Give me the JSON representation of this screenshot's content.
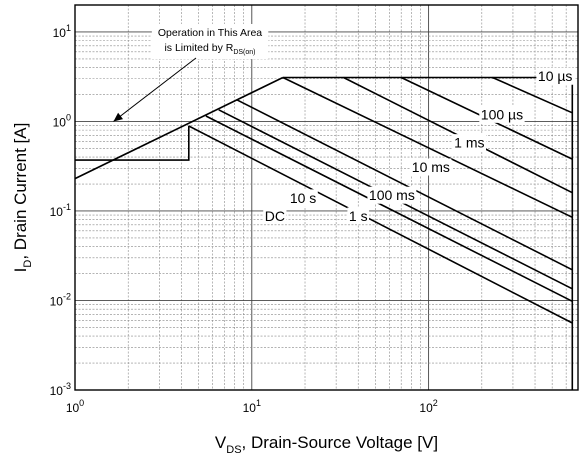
{
  "chart_data": {
    "type": "line",
    "x_scale": "log",
    "y_scale": "log",
    "xlim": [
      1,
      700
    ],
    "ylim": [
      0.001,
      20
    ],
    "grid": true,
    "xlabel": {
      "main": "V",
      "sub": "DS",
      "rest": ", Drain-Source Voltage [V]"
    },
    "ylabel": {
      "main": "I",
      "sub": "D",
      "rest": ", Drain Current [A]"
    },
    "x_ticks": [
      {
        "value": 1,
        "base": "10",
        "exp": "0"
      },
      {
        "value": 10,
        "base": "10",
        "exp": "1"
      },
      {
        "value": 100,
        "base": "10",
        "exp": "2"
      }
    ],
    "y_ticks": [
      {
        "value": 0.001,
        "base": "10",
        "exp": "-3"
      },
      {
        "value": 0.01,
        "base": "10",
        "exp": "-2"
      },
      {
        "value": 0.1,
        "base": "10",
        "exp": "-1"
      },
      {
        "value": 1,
        "base": "10",
        "exp": "0"
      },
      {
        "value": 10,
        "base": "10",
        "exp": "1"
      }
    ],
    "series": [
      {
        "id": "rds-limit",
        "points": [
          [
            1,
            0.23
          ],
          [
            15,
            3.1
          ]
        ]
      },
      {
        "id": "current-limit",
        "points": [
          [
            15,
            3.1
          ],
          [
            650,
            3.1
          ]
        ]
      },
      {
        "id": "voltage-limit",
        "points": [
          [
            650,
            0.001
          ],
          [
            650,
            3.1
          ]
        ]
      },
      {
        "name": "10 µs",
        "points": [
          [
            230,
            3.1
          ],
          [
            650,
            1.25
          ]
        ]
      },
      {
        "name": "100 µs",
        "points": [
          [
            70,
            3.1
          ],
          [
            650,
            0.38
          ]
        ]
      },
      {
        "name": "1 ms",
        "points": [
          [
            33,
            3.1
          ],
          [
            650,
            0.16
          ]
        ]
      },
      {
        "name": "10 ms",
        "points": [
          [
            15,
            3.1
          ],
          [
            650,
            0.085
          ]
        ]
      },
      {
        "name": "100 ms",
        "points": [
          [
            8.2,
            1.75
          ],
          [
            650,
            0.022
          ]
        ]
      },
      {
        "name": "1 s",
        "points": [
          [
            6.5,
            1.35
          ],
          [
            650,
            0.0135
          ]
        ]
      },
      {
        "name": "10 s",
        "points": [
          [
            5.5,
            1.15
          ],
          [
            650,
            0.0098
          ]
        ]
      },
      {
        "name": "DC",
        "points": [
          [
            4.4,
            0.89
          ],
          [
            650,
            0.0056
          ]
        ]
      },
      {
        "id": "dc-floor",
        "points": [
          [
            1,
            0.37
          ],
          [
            4.4,
            0.37
          ],
          [
            4.4,
            0.89
          ]
        ]
      }
    ],
    "annotations": {
      "note_line1": "Operation in This Area",
      "note_line2_main": "is Limited by R",
      "note_line2_sub": "DS(on)",
      "arrow_target": [
        1.65,
        1.0
      ]
    },
    "curve_labels": [
      {
        "text": "10 µs",
        "at": [
          520,
          3.2
        ]
      },
      {
        "text": "100 µs",
        "at": [
          260,
          1.2
        ]
      },
      {
        "text": "1 ms",
        "at": [
          170,
          0.58
        ]
      },
      {
        "text": "10 ms",
        "at": [
          103,
          0.31
        ]
      },
      {
        "text": "100 ms",
        "at": [
          62,
          0.15
        ]
      },
      {
        "text": "1 s",
        "at": [
          40,
          0.088
        ]
      },
      {
        "text": "10 s",
        "at": [
          19.5,
          0.14
        ]
      },
      {
        "text": "DC",
        "at": [
          13.5,
          0.088
        ]
      }
    ]
  }
}
